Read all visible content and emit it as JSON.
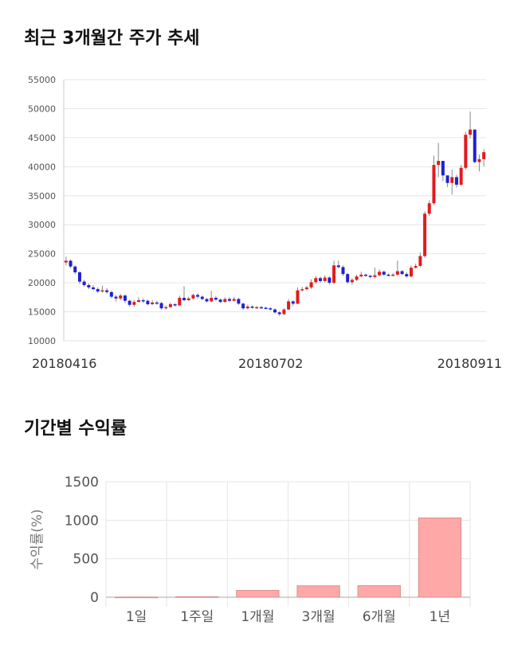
{
  "titles": {
    "price_trend": "최근 3개월간 주가 추세",
    "period_returns": "기간별 수익률"
  },
  "chart_data": [
    {
      "type": "candlestick",
      "title": "최근 3개월간 주가 추세",
      "ylim": [
        10000,
        55000
      ],
      "y_ticks": [
        10000,
        15000,
        20000,
        25000,
        30000,
        35000,
        40000,
        45000,
        50000,
        55000
      ],
      "x_tick_labels": [
        "20180416",
        "20180702",
        "20180911"
      ],
      "grid": true,
      "up_color": "#e31a1c",
      "down_color": "#1f1fd6",
      "candles": [
        [
          23500,
          23800,
          24500,
          23000
        ],
        [
          23800,
          22800,
          24000,
          22500
        ],
        [
          22800,
          21800,
          23000,
          21500
        ],
        [
          21800,
          20200,
          22000,
          19800
        ],
        [
          20200,
          19600,
          20500,
          19300
        ],
        [
          19600,
          19200,
          19900,
          18900
        ],
        [
          19200,
          18900,
          19600,
          18700
        ],
        [
          18900,
          18500,
          19200,
          18200
        ],
        [
          18500,
          18700,
          19500,
          18300
        ],
        [
          18700,
          18400,
          19100,
          18100
        ],
        [
          18400,
          17600,
          18600,
          17300
        ],
        [
          17600,
          17300,
          17900,
          16800
        ],
        [
          17300,
          17800,
          18100,
          17000
        ],
        [
          17800,
          16900,
          18000,
          16500
        ],
        [
          16900,
          16200,
          17100,
          15900
        ],
        [
          16200,
          16700,
          17000,
          15900
        ],
        [
          16700,
          17000,
          17500,
          16600
        ],
        [
          17000,
          16900,
          17300,
          16500
        ],
        [
          16900,
          16300,
          17100,
          16100
        ],
        [
          16300,
          16600,
          17000,
          16200
        ],
        [
          16600,
          16500,
          16900,
          16200
        ],
        [
          16500,
          15600,
          16700,
          15400
        ],
        [
          15600,
          15800,
          16100,
          15400
        ],
        [
          15800,
          16300,
          16600,
          15700
        ],
        [
          16300,
          16100,
          16500,
          15900
        ],
        [
          16100,
          17400,
          17800,
          16000
        ],
        [
          17400,
          17000,
          19400,
          16800
        ],
        [
          17000,
          17300,
          17600,
          16900
        ],
        [
          17300,
          17900,
          18100,
          17100
        ],
        [
          17900,
          17600,
          18200,
          17300
        ],
        [
          17600,
          17200,
          17800,
          17000
        ],
        [
          17200,
          16800,
          17400,
          16600
        ],
        [
          16800,
          17400,
          18600,
          16600
        ],
        [
          17400,
          17100,
          17700,
          16900
        ],
        [
          17100,
          16700,
          17300,
          16500
        ],
        [
          16700,
          17200,
          17500,
          16600
        ],
        [
          17200,
          16900,
          17500,
          16700
        ],
        [
          16900,
          17200,
          17600,
          16800
        ],
        [
          17200,
          16400,
          17400,
          16200
        ],
        [
          16400,
          15600,
          16600,
          15300
        ],
        [
          15600,
          15900,
          16200,
          15400
        ],
        [
          15900,
          15700,
          16100,
          15500
        ],
        [
          15700,
          15800,
          16000,
          15500
        ],
        [
          15800,
          15700,
          16000,
          15500
        ],
        [
          15700,
          15600,
          15900,
          15400
        ],
        [
          15600,
          15400,
          15800,
          15200
        ],
        [
          15400,
          14900,
          15600,
          14700
        ],
        [
          14900,
          14600,
          15100,
          14300
        ],
        [
          14600,
          15400,
          15600,
          14400
        ],
        [
          15400,
          16800,
          17200,
          15300
        ],
        [
          16800,
          16400,
          17000,
          16000
        ],
        [
          16400,
          18700,
          19200,
          16300
        ],
        [
          18700,
          18900,
          19300,
          18500
        ],
        [
          18900,
          19200,
          19500,
          18700
        ],
        [
          19200,
          20100,
          20600,
          18900
        ],
        [
          20100,
          20800,
          21200,
          19800
        ],
        [
          20800,
          20300,
          21100,
          20000
        ],
        [
          20300,
          20900,
          21300,
          20100
        ],
        [
          20900,
          20000,
          21100,
          19700
        ],
        [
          20000,
          23000,
          23800,
          19800
        ],
        [
          23000,
          22700,
          23800,
          22500
        ],
        [
          22700,
          21500,
          23000,
          21200
        ],
        [
          21500,
          20100,
          21700,
          19800
        ],
        [
          20100,
          20500,
          20800,
          19700
        ],
        [
          20500,
          21100,
          21400,
          20300
        ],
        [
          21100,
          21400,
          21900,
          20900
        ],
        [
          21400,
          21200,
          21600,
          21000
        ],
        [
          21200,
          21000,
          21400,
          20800
        ],
        [
          21000,
          21300,
          22600,
          20700
        ],
        [
          21300,
          21900,
          22300,
          21100
        ],
        [
          21900,
          21400,
          22100,
          21200
        ],
        [
          21400,
          21300,
          21600,
          21100
        ],
        [
          21300,
          21400,
          21700,
          21100
        ],
        [
          21400,
          22000,
          23800,
          21200
        ],
        [
          22000,
          21500,
          22200,
          21300
        ],
        [
          21500,
          21100,
          21800,
          20900
        ],
        [
          21100,
          22600,
          23000,
          20900
        ],
        [
          22600,
          22900,
          23300,
          22400
        ],
        [
          22900,
          24600,
          25200,
          22700
        ],
        [
          24600,
          31900,
          32300,
          24300
        ],
        [
          31900,
          33700,
          34200,
          31500
        ],
        [
          33700,
          40300,
          41900,
          33400
        ],
        [
          40300,
          41000,
          44100,
          38200
        ],
        [
          41000,
          38500,
          39200,
          37500
        ],
        [
          38500,
          37200,
          38300,
          36500
        ],
        [
          37200,
          38200,
          39500,
          35200
        ],
        [
          38200,
          36900,
          38600,
          36400
        ],
        [
          36900,
          39800,
          40300,
          36700
        ],
        [
          39800,
          45500,
          46000,
          39500
        ],
        [
          45500,
          46400,
          49500,
          44900
        ],
        [
          46400,
          40800,
          43900,
          40600
        ],
        [
          40800,
          41300,
          42100,
          39200
        ],
        [
          41300,
          42500,
          43000,
          40100
        ]
      ]
    },
    {
      "type": "bar",
      "title": "기간별 수익률",
      "categories": [
        "1일",
        "1주일",
        "1개월",
        "3개월",
        "6개월",
        "1년"
      ],
      "values": [
        2,
        6,
        88,
        148,
        150,
        1030
      ],
      "ylim": [
        0,
        1500
      ],
      "y_ticks": [
        0,
        500,
        1000,
        1500
      ],
      "ylabel": "수익률(%)",
      "bar_color": "#ffa8a8",
      "bar_stroke": "#d98e8e"
    }
  ]
}
